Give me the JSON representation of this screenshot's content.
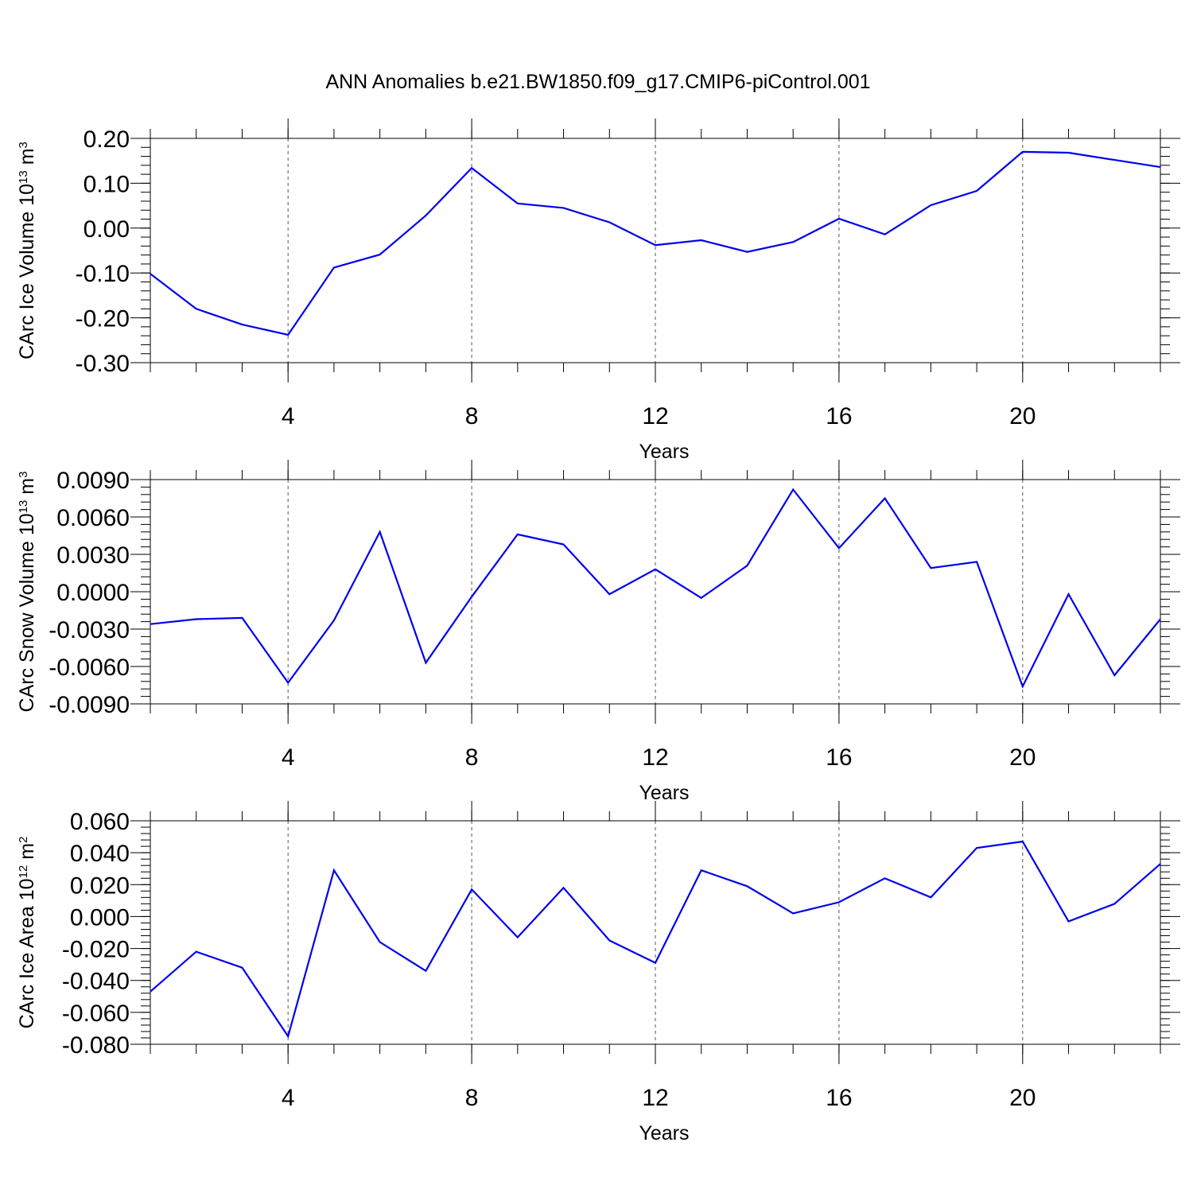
{
  "title": "ANN Anomalies b.e21.BW1850.f09_g17.CMIP6-piControl.001",
  "line_color": "#0000ee",
  "chart_data": [
    {
      "type": "line",
      "ylabel": "CArc Ice Volume 10",
      "ylabel_exp": "13",
      "ylabel_unit": " m",
      "ylabel_unit_exp": "3",
      "xlabel": "Years",
      "xlim": [
        1,
        23
      ],
      "ylim": [
        -0.3,
        0.2
      ],
      "yticks": [
        "0.20",
        "0.10",
        "0.00",
        "-0.10",
        "-0.20",
        "-0.30"
      ],
      "ytick_values": [
        0.2,
        0.1,
        0.0,
        -0.1,
        -0.2,
        -0.3
      ],
      "xticks": [
        "4",
        "8",
        "12",
        "16",
        "20"
      ],
      "xtick_values": [
        4,
        8,
        12,
        16,
        20
      ],
      "grid": "dashed vertical at major x ticks",
      "x": [
        1,
        2,
        3,
        4,
        5,
        6,
        7,
        8,
        9,
        10,
        11,
        12,
        13,
        14,
        15,
        16,
        17,
        18,
        19,
        20,
        21,
        22,
        23
      ],
      "values": [
        -0.102,
        -0.18,
        -0.215,
        -0.238,
        -0.088,
        -0.059,
        0.028,
        0.134,
        0.055,
        0.045,
        0.013,
        -0.038,
        -0.027,
        -0.053,
        -0.031,
        0.021,
        -0.014,
        0.051,
        0.083,
        0.17,
        0.168,
        0.152,
        0.136
      ]
    },
    {
      "type": "line",
      "ylabel": "CArc Snow Volume 10",
      "ylabel_exp": "13",
      "ylabel_unit": " m",
      "ylabel_unit_exp": "3",
      "xlabel": "Years",
      "xlim": [
        1,
        23
      ],
      "ylim": [
        -0.009,
        0.009
      ],
      "yticks": [
        "0.0090",
        "0.0060",
        "0.0030",
        "0.0000",
        "-0.0030",
        "-0.0060",
        "-0.0090"
      ],
      "ytick_values": [
        0.009,
        0.006,
        0.003,
        0.0,
        -0.003,
        -0.006,
        -0.009
      ],
      "xticks": [
        "4",
        "8",
        "12",
        "16",
        "20"
      ],
      "xtick_values": [
        4,
        8,
        12,
        16,
        20
      ],
      "grid": "dashed vertical at major x ticks",
      "x": [
        1,
        2,
        3,
        4,
        5,
        6,
        7,
        8,
        9,
        10,
        11,
        12,
        13,
        14,
        15,
        16,
        17,
        18,
        19,
        20,
        21,
        22,
        23
      ],
      "values": [
        -0.0026,
        -0.0022,
        -0.0021,
        -0.0073,
        -0.0023,
        0.0048,
        -0.0057,
        -0.0004,
        0.0046,
        0.0038,
        -0.0002,
        0.0018,
        -0.0005,
        0.0021,
        0.0082,
        0.0035,
        0.0075,
        0.0019,
        0.0024,
        -0.0076,
        -0.0002,
        -0.0067,
        -0.0022
      ]
    },
    {
      "type": "line",
      "ylabel": "CArc Ice Area 10",
      "ylabel_exp": "12",
      "ylabel_unit": " m",
      "ylabel_unit_exp": "2",
      "xlabel": "Years",
      "xlim": [
        1,
        23
      ],
      "ylim": [
        -0.08,
        0.06
      ],
      "yticks": [
        "0.060",
        "0.040",
        "0.020",
        "0.000",
        "-0.020",
        "-0.040",
        "-0.060",
        "-0.080"
      ],
      "ytick_values": [
        0.06,
        0.04,
        0.02,
        0.0,
        -0.02,
        -0.04,
        -0.06,
        -0.08
      ],
      "xticks": [
        "4",
        "8",
        "12",
        "16",
        "20"
      ],
      "xtick_values": [
        4,
        8,
        12,
        16,
        20
      ],
      "grid": "dashed vertical at major x ticks",
      "x": [
        1,
        2,
        3,
        4,
        5,
        6,
        7,
        8,
        9,
        10,
        11,
        12,
        13,
        14,
        15,
        16,
        17,
        18,
        19,
        20,
        21,
        22,
        23
      ],
      "values": [
        -0.047,
        -0.022,
        -0.032,
        -0.075,
        0.029,
        -0.016,
        -0.034,
        0.017,
        -0.013,
        0.018,
        -0.015,
        -0.029,
        0.029,
        0.019,
        0.002,
        0.009,
        0.024,
        0.012,
        0.043,
        0.047,
        -0.003,
        0.008,
        0.033
      ]
    }
  ]
}
